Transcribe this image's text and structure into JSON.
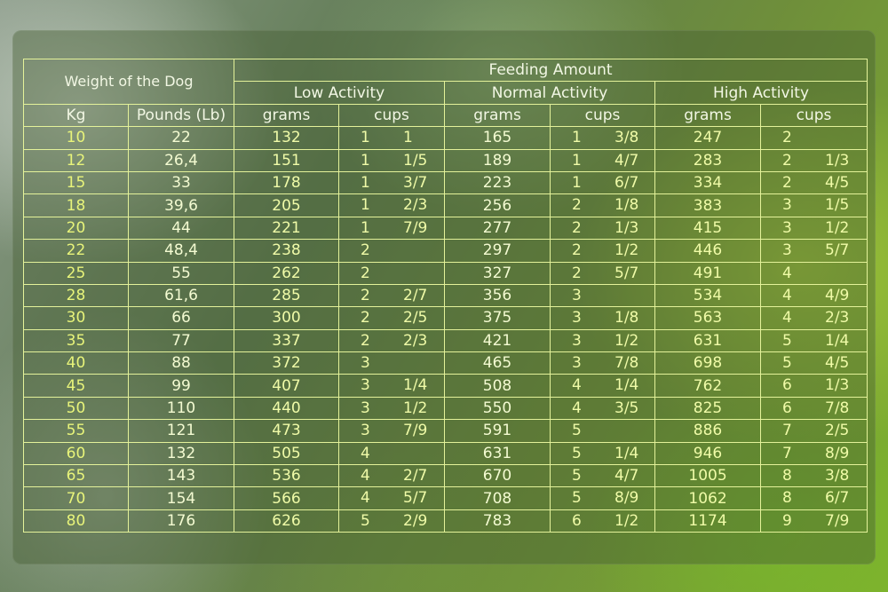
{
  "table": {
    "headers": {
      "weight": "Weight of the Dog",
      "feeding": "Feeding Amount",
      "low": "Low Activity",
      "normal": "Normal Activity",
      "high": "High Activity",
      "kg": "Kg",
      "pounds": "Pounds (Lb)",
      "grams": "grams",
      "cups": "cups"
    },
    "rows": [
      {
        "kg": "10",
        "lb": "22",
        "low_g": "132",
        "low_cw": "1",
        "low_cf": "1",
        "norm_g": "165",
        "norm_cw": "1",
        "norm_cf": "3/8",
        "high_g": "247",
        "high_cw": "2",
        "high_cf": ""
      },
      {
        "kg": "12",
        "lb": "26,4",
        "low_g": "151",
        "low_cw": "1",
        "low_cf": "1/5",
        "norm_g": "189",
        "norm_cw": "1",
        "norm_cf": "4/7",
        "high_g": "283",
        "high_cw": "2",
        "high_cf": "1/3"
      },
      {
        "kg": "15",
        "lb": "33",
        "low_g": "178",
        "low_cw": "1",
        "low_cf": "3/7",
        "norm_g": "223",
        "norm_cw": "1",
        "norm_cf": "6/7",
        "high_g": "334",
        "high_cw": "2",
        "high_cf": "4/5"
      },
      {
        "kg": "18",
        "lb": "39,6",
        "low_g": "205",
        "low_cw": "1",
        "low_cf": "2/3",
        "norm_g": "256",
        "norm_cw": "2",
        "norm_cf": "1/8",
        "high_g": "383",
        "high_cw": "3",
        "high_cf": "1/5"
      },
      {
        "kg": "20",
        "lb": "44",
        "low_g": "221",
        "low_cw": "1",
        "low_cf": "7/9",
        "norm_g": "277",
        "norm_cw": "2",
        "norm_cf": "1/3",
        "high_g": "415",
        "high_cw": "3",
        "high_cf": "1/2"
      },
      {
        "kg": "22",
        "lb": "48,4",
        "low_g": "238",
        "low_cw": "2",
        "low_cf": "",
        "norm_g": "297",
        "norm_cw": "2",
        "norm_cf": "1/2",
        "high_g": "446",
        "high_cw": "3",
        "high_cf": "5/7"
      },
      {
        "kg": "25",
        "lb": "55",
        "low_g": "262",
        "low_cw": "2",
        "low_cf": "",
        "norm_g": "327",
        "norm_cw": "2",
        "norm_cf": "5/7",
        "high_g": "491",
        "high_cw": "4",
        "high_cf": ""
      },
      {
        "kg": "28",
        "lb": "61,6",
        "low_g": "285",
        "low_cw": "2",
        "low_cf": "2/7",
        "norm_g": "356",
        "norm_cw": "3",
        "norm_cf": "",
        "high_g": "534",
        "high_cw": "4",
        "high_cf": "4/9"
      },
      {
        "kg": "30",
        "lb": "66",
        "low_g": "300",
        "low_cw": "2",
        "low_cf": "2/5",
        "norm_g": "375",
        "norm_cw": "3",
        "norm_cf": "1/8",
        "high_g": "563",
        "high_cw": "4",
        "high_cf": "2/3"
      },
      {
        "kg": "35",
        "lb": "77",
        "low_g": "337",
        "low_cw": "2",
        "low_cf": "2/3",
        "norm_g": "421",
        "norm_cw": "3",
        "norm_cf": "1/2",
        "high_g": "631",
        "high_cw": "5",
        "high_cf": "1/4"
      },
      {
        "kg": "40",
        "lb": "88",
        "low_g": "372",
        "low_cw": "3",
        "low_cf": "",
        "norm_g": "465",
        "norm_cw": "3",
        "norm_cf": "7/8",
        "high_g": "698",
        "high_cw": "5",
        "high_cf": "4/5"
      },
      {
        "kg": "45",
        "lb": "99",
        "low_g": "407",
        "low_cw": "3",
        "low_cf": "1/4",
        "norm_g": "508",
        "norm_cw": "4",
        "norm_cf": "1/4",
        "high_g": "762",
        "high_cw": "6",
        "high_cf": "1/3"
      },
      {
        "kg": "50",
        "lb": "110",
        "low_g": "440",
        "low_cw": "3",
        "low_cf": "1/2",
        "norm_g": "550",
        "norm_cw": "4",
        "norm_cf": "3/5",
        "high_g": "825",
        "high_cw": "6",
        "high_cf": "7/8"
      },
      {
        "kg": "55",
        "lb": "121",
        "low_g": "473",
        "low_cw": "3",
        "low_cf": "7/9",
        "norm_g": "591",
        "norm_cw": "5",
        "norm_cf": "",
        "high_g": "886",
        "high_cw": "7",
        "high_cf": "2/5"
      },
      {
        "kg": "60",
        "lb": "132",
        "low_g": "505",
        "low_cw": "4",
        "low_cf": "",
        "norm_g": "631",
        "norm_cw": "5",
        "norm_cf": "1/4",
        "high_g": "946",
        "high_cw": "7",
        "high_cf": "8/9"
      },
      {
        "kg": "65",
        "lb": "143",
        "low_g": "536",
        "low_cw": "4",
        "low_cf": "2/7",
        "norm_g": "670",
        "norm_cw": "5",
        "norm_cf": "4/7",
        "high_g": "1005",
        "high_cw": "8",
        "high_cf": "3/8"
      },
      {
        "kg": "70",
        "lb": "154",
        "low_g": "566",
        "low_cw": "4",
        "low_cf": "5/7",
        "norm_g": "708",
        "norm_cw": "5",
        "norm_cf": "8/9",
        "high_g": "1062",
        "high_cw": "8",
        "high_cf": "6/7"
      },
      {
        "kg": "80",
        "lb": "176",
        "low_g": "626",
        "low_cw": "5",
        "low_cf": "2/9",
        "norm_g": "783",
        "norm_cw": "6",
        "norm_cf": "1/2",
        "high_g": "1174",
        "high_cw": "9",
        "high_cf": "7/9"
      }
    ]
  }
}
